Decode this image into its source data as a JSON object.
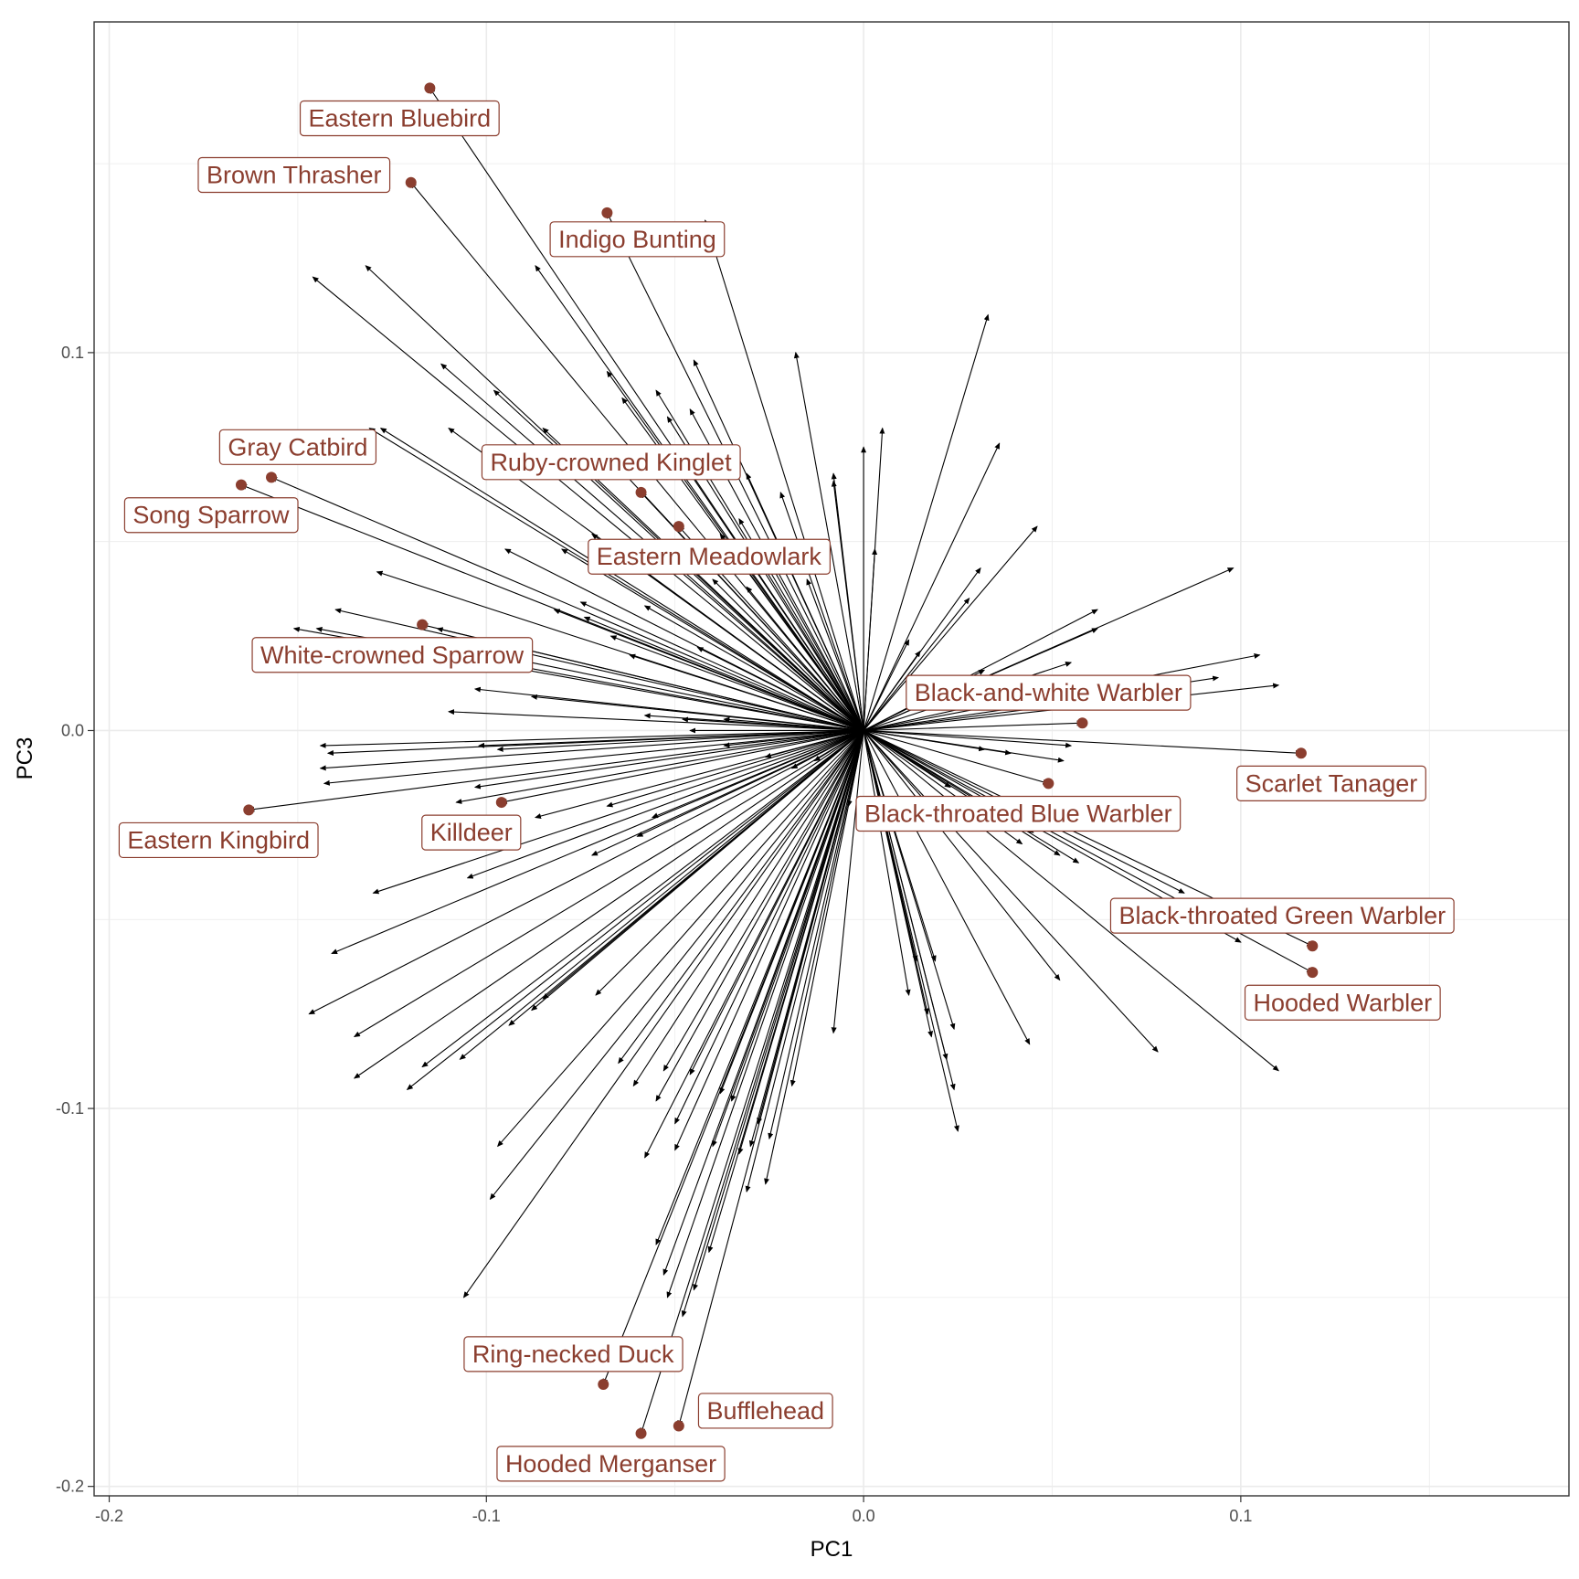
{
  "chart_data": {
    "type": "scatter",
    "xlabel": "PC1",
    "ylabel": "PC3",
    "xlim": [
      -0.204,
      0.187
    ],
    "ylim": [
      -0.2025,
      0.1875
    ],
    "x_ticks": [
      -0.2,
      -0.1,
      0.0,
      0.1
    ],
    "x_tick_labels": [
      "-0.2",
      "-0.1",
      "0.0",
      "0.1"
    ],
    "y_ticks": [
      -0.2,
      -0.1,
      0.0,
      0.1
    ],
    "y_tick_labels": [
      "-0.2",
      "-0.1",
      "0.0",
      "0.1"
    ],
    "grid": true,
    "colors": {
      "points": "#8B3E2F",
      "arrows": "#000000",
      "grid": "#ebebeb",
      "label_text": "#8B3E2F"
    },
    "points": [
      {
        "name": "Eastern Bluebird",
        "x": -0.115,
        "y": 0.17,
        "lx": -0.123,
        "ly": 0.162
      },
      {
        "name": "Brown Thrasher",
        "x": -0.12,
        "y": 0.145,
        "lx": -0.151,
        "ly": 0.147
      },
      {
        "name": "Indigo Bunting",
        "x": -0.068,
        "y": 0.137,
        "lx": -0.06,
        "ly": 0.13
      },
      {
        "name": "Gray Catbird",
        "x": -0.157,
        "y": 0.067,
        "lx": -0.15,
        "ly": 0.075
      },
      {
        "name": "Song Sparrow",
        "x": -0.165,
        "y": 0.065,
        "lx": -0.173,
        "ly": 0.057
      },
      {
        "name": "Ruby-crowned Kinglet",
        "x": -0.059,
        "y": 0.063,
        "lx": -0.067,
        "ly": 0.071
      },
      {
        "name": "Eastern Meadowlark",
        "x": -0.049,
        "y": 0.054,
        "lx": -0.041,
        "ly": 0.046
      },
      {
        "name": "White-crowned Sparrow",
        "x": -0.117,
        "y": 0.028,
        "lx": -0.125,
        "ly": 0.02
      },
      {
        "name": "Black-and-white Warbler",
        "x": 0.058,
        "y": 0.002,
        "lx": 0.049,
        "ly": 0.01
      },
      {
        "name": "Scarlet Tanager",
        "x": 0.116,
        "y": -0.006,
        "lx": 0.124,
        "ly": -0.014
      },
      {
        "name": "Black-throated Blue Warbler",
        "x": 0.049,
        "y": -0.014,
        "lx": 0.041,
        "ly": -0.022
      },
      {
        "name": "Killdeer",
        "x": -0.096,
        "y": -0.019,
        "lx": -0.104,
        "ly": -0.027
      },
      {
        "name": "Eastern Kingbird",
        "x": -0.163,
        "y": -0.021,
        "lx": -0.171,
        "ly": -0.029
      },
      {
        "name": "Black-throated Green Warbler",
        "x": 0.119,
        "y": -0.057,
        "lx": 0.111,
        "ly": -0.049
      },
      {
        "name": "Hooded Warbler",
        "x": 0.119,
        "y": -0.064,
        "lx": 0.127,
        "ly": -0.072
      },
      {
        "name": "Ring-necked Duck",
        "x": -0.069,
        "y": -0.173,
        "lx": -0.077,
        "ly": -0.165
      },
      {
        "name": "Bufflehead",
        "x": -0.049,
        "y": -0.184,
        "lx": -0.026,
        "ly": -0.18
      },
      {
        "name": "Hooded Merganser",
        "x": -0.059,
        "y": -0.186,
        "lx": -0.067,
        "ly": -0.194
      }
    ],
    "arrows": [
      [
        -0.115,
        0.17
      ],
      [
        -0.12,
        0.145
      ],
      [
        -0.068,
        0.137
      ],
      [
        -0.157,
        0.067
      ],
      [
        -0.165,
        0.065
      ],
      [
        -0.059,
        0.063
      ],
      [
        -0.049,
        0.054
      ],
      [
        -0.117,
        0.028
      ],
      [
        0.058,
        0.002
      ],
      [
        0.116,
        -0.006
      ],
      [
        0.049,
        -0.014
      ],
      [
        -0.096,
        -0.019
      ],
      [
        -0.163,
        -0.021
      ],
      [
        0.119,
        -0.057
      ],
      [
        0.119,
        -0.064
      ],
      [
        -0.069,
        -0.173
      ],
      [
        -0.049,
        -0.184
      ],
      [
        -0.059,
        -0.186
      ],
      [
        -0.146,
        0.12
      ],
      [
        -0.132,
        0.123
      ],
      [
        -0.042,
        0.135
      ],
      [
        -0.087,
        0.123
      ],
      [
        0.033,
        0.11
      ],
      [
        -0.018,
        0.1
      ],
      [
        0.005,
        0.08
      ],
      [
        0.0,
        0.075
      ],
      [
        0.036,
        0.076
      ],
      [
        -0.008,
        0.066
      ],
      [
        -0.045,
        0.098
      ],
      [
        -0.055,
        0.09
      ],
      [
        -0.068,
        0.095
      ],
      [
        -0.085,
        0.08
      ],
      [
        -0.098,
        0.09
      ],
      [
        -0.112,
        0.097
      ],
      [
        -0.131,
        0.08
      ],
      [
        -0.128,
        0.08
      ],
      [
        -0.11,
        0.08
      ],
      [
        -0.07,
        0.075
      ],
      [
        -0.046,
        0.085
      ],
      [
        -0.052,
        0.083
      ],
      [
        -0.064,
        0.088
      ],
      [
        -0.031,
        0.068
      ],
      [
        -0.022,
        0.063
      ],
      [
        -0.033,
        0.056
      ],
      [
        -0.038,
        0.052
      ],
      [
        -0.08,
        0.048
      ],
      [
        -0.095,
        0.048
      ],
      [
        -0.129,
        0.042
      ],
      [
        -0.14,
        0.032
      ],
      [
        -0.151,
        0.027
      ],
      [
        -0.145,
        0.027
      ],
      [
        -0.113,
        0.027
      ],
      [
        -0.082,
        0.032
      ],
      [
        -0.074,
        0.03
      ],
      [
        -0.093,
        0.019
      ],
      [
        -0.067,
        0.025
      ],
      [
        -0.062,
        0.02
      ],
      [
        -0.088,
        0.009
      ],
      [
        -0.103,
        0.011
      ],
      [
        -0.11,
        0.005
      ],
      [
        -0.058,
        0.004
      ],
      [
        -0.048,
        0.003
      ],
      [
        -0.037,
        0.003
      ],
      [
        -0.046,
        0.0
      ],
      [
        -0.144,
        -0.004
      ],
      [
        -0.142,
        -0.006
      ],
      [
        -0.102,
        -0.004
      ],
      [
        -0.037,
        -0.004
      ],
      [
        -0.097,
        -0.005
      ],
      [
        -0.144,
        -0.01
      ],
      [
        -0.143,
        -0.014
      ],
      [
        -0.103,
        -0.015
      ],
      [
        -0.108,
        -0.019
      ],
      [
        -0.068,
        -0.02
      ],
      [
        -0.087,
        -0.023
      ],
      [
        -0.056,
        -0.023
      ],
      [
        -0.06,
        -0.028
      ],
      [
        -0.026,
        -0.007
      ],
      [
        -0.019,
        -0.01
      ],
      [
        -0.013,
        -0.008
      ],
      [
        -0.004,
        -0.02
      ],
      [
        -0.105,
        -0.039
      ],
      [
        -0.072,
        -0.033
      ],
      [
        -0.13,
        -0.043
      ],
      [
        -0.141,
        -0.059
      ],
      [
        -0.147,
        -0.075
      ],
      [
        -0.135,
        -0.081
      ],
      [
        -0.135,
        -0.092
      ],
      [
        -0.121,
        -0.095
      ],
      [
        -0.117,
        -0.089
      ],
      [
        -0.107,
        -0.087
      ],
      [
        -0.094,
        -0.078
      ],
      [
        -0.088,
        -0.074
      ],
      [
        -0.085,
        -0.071
      ],
      [
        -0.071,
        -0.07
      ],
      [
        -0.053,
        -0.09
      ],
      [
        -0.061,
        -0.094
      ],
      [
        -0.05,
        -0.104
      ],
      [
        -0.046,
        -0.091
      ],
      [
        -0.055,
        -0.098
      ],
      [
        -0.038,
        -0.096
      ],
      [
        -0.035,
        -0.098
      ],
      [
        -0.033,
        -0.112
      ],
      [
        -0.03,
        -0.11
      ],
      [
        -0.026,
        -0.12
      ],
      [
        -0.031,
        -0.122
      ],
      [
        -0.025,
        -0.108
      ],
      [
        -0.019,
        -0.094
      ],
      [
        -0.05,
        -0.111
      ],
      [
        -0.04,
        -0.11
      ],
      [
        -0.058,
        -0.113
      ],
      [
        -0.065,
        -0.088
      ],
      [
        -0.028,
        -0.104
      ],
      [
        -0.097,
        -0.11
      ],
      [
        -0.099,
        -0.124
      ],
      [
        -0.106,
        -0.15
      ],
      [
        -0.055,
        -0.136
      ],
      [
        -0.052,
        -0.15
      ],
      [
        -0.053,
        -0.144
      ],
      [
        -0.048,
        -0.155
      ],
      [
        -0.045,
        -0.148
      ],
      [
        -0.041,
        -0.138
      ],
      [
        -0.008,
        -0.08
      ],
      [
        0.012,
        -0.07
      ],
      [
        0.014,
        -0.061
      ],
      [
        0.019,
        -0.061
      ],
      [
        0.024,
        -0.079
      ],
      [
        0.022,
        -0.087
      ],
      [
        0.018,
        -0.081
      ],
      [
        0.024,
        -0.095
      ],
      [
        0.017,
        -0.075
      ],
      [
        0.025,
        -0.106
      ],
      [
        0.044,
        -0.083
      ],
      [
        0.052,
        -0.066
      ],
      [
        0.078,
        -0.085
      ],
      [
        0.11,
        -0.09
      ],
      [
        0.1,
        -0.056
      ],
      [
        0.085,
        -0.043
      ],
      [
        0.057,
        -0.035
      ],
      [
        0.042,
        -0.03
      ],
      [
        0.052,
        -0.033
      ],
      [
        0.045,
        -0.027
      ],
      [
        0.023,
        -0.015
      ],
      [
        0.021,
        -0.024
      ],
      [
        0.039,
        -0.006
      ],
      [
        0.032,
        -0.005
      ],
      [
        0.053,
        -0.008
      ],
      [
        0.055,
        -0.004
      ],
      [
        0.032,
        0.016
      ],
      [
        0.045,
        0.01
      ],
      [
        0.055,
        0.018
      ],
      [
        0.07,
        0.009
      ],
      [
        0.094,
        0.014
      ],
      [
        0.105,
        0.02
      ],
      [
        0.11,
        0.012
      ],
      [
        0.062,
        0.027
      ],
      [
        0.062,
        0.032
      ],
      [
        0.098,
        0.043
      ],
      [
        0.028,
        0.035
      ],
      [
        0.046,
        0.054
      ],
      [
        0.031,
        0.043
      ],
      [
        0.012,
        0.024
      ],
      [
        0.015,
        0.021
      ],
      [
        -0.008,
        0.068
      ],
      [
        0.003,
        0.048
      ],
      [
        -0.028,
        0.05
      ],
      [
        -0.031,
        0.038
      ],
      [
        -0.062,
        0.045
      ],
      [
        -0.075,
        0.034
      ],
      [
        -0.058,
        0.033
      ],
      [
        -0.04,
        0.04
      ],
      [
        -0.072,
        0.052
      ],
      [
        -0.047,
        0.07
      ],
      [
        -0.051,
        0.045
      ],
      [
        -0.044,
        0.022
      ],
      [
        -0.015,
        0.04
      ]
    ]
  }
}
